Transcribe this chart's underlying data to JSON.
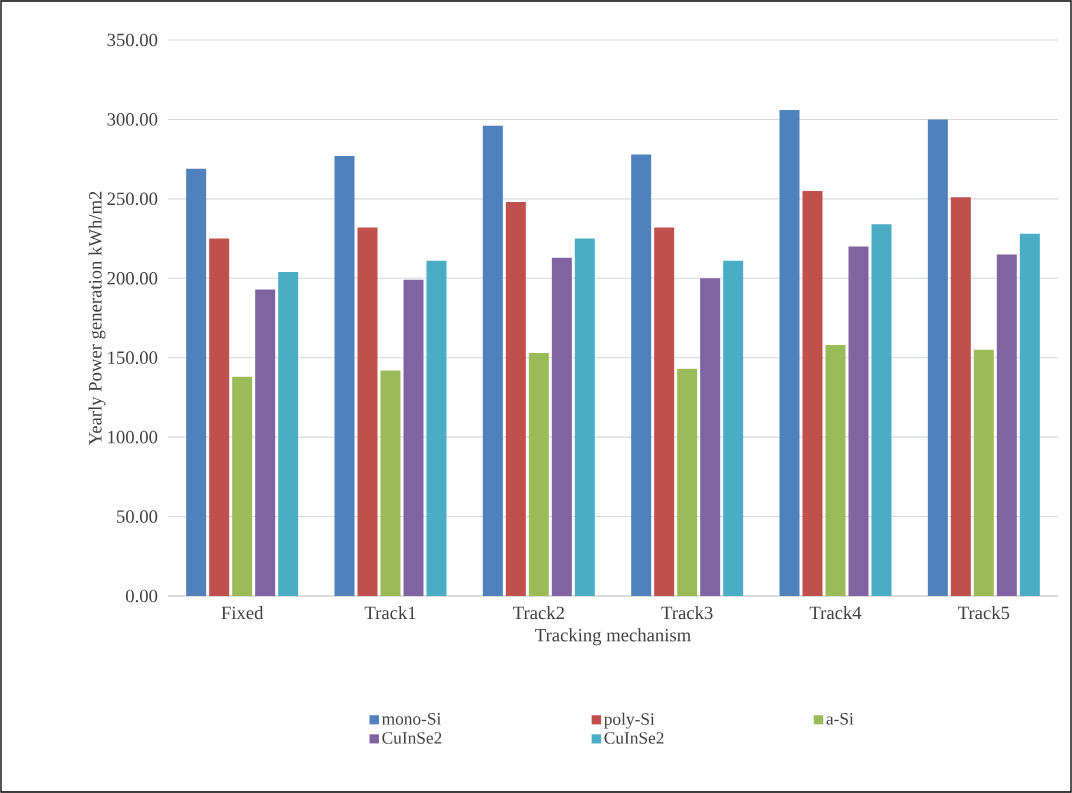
{
  "chart_data": {
    "type": "bar",
    "xlabel": "Tracking mechanism",
    "ylabel": "Yearly Power generation kWh/m2",
    "categories": [
      "Fixed",
      "Track1",
      "Track2",
      "Track3",
      "Track4",
      "Track5"
    ],
    "series": [
      {
        "name": "mono-Si",
        "color": "#4f81bd",
        "values": [
          269,
          277,
          296,
          278,
          306,
          300
        ]
      },
      {
        "name": "poly-Si",
        "color": "#c0504d",
        "values": [
          225,
          232,
          248,
          232,
          255,
          251
        ]
      },
      {
        "name": "a-Si",
        "color": "#9bbb59",
        "values": [
          138,
          142,
          153,
          143,
          158,
          155
        ]
      },
      {
        "name": "CuInSe2",
        "color": "#8064a2",
        "values": [
          193,
          199,
          213,
          200,
          220,
          215
        ]
      },
      {
        "name": "CuInSe2",
        "color": "#4bacc6",
        "values": [
          204,
          211,
          225,
          211,
          234,
          228
        ]
      }
    ],
    "ylim": [
      0,
      350
    ],
    "yticks": [
      {
        "value": 0,
        "label": "0.00"
      },
      {
        "value": 50,
        "label": "50.00"
      },
      {
        "value": 100,
        "label": "100.00"
      },
      {
        "value": 150,
        "label": "150.00"
      },
      {
        "value": 200,
        "label": "200.00"
      },
      {
        "value": 250,
        "label": "250.00"
      },
      {
        "value": 300,
        "label": "300.00"
      },
      {
        "value": 350,
        "label": "350.00"
      }
    ],
    "grid": "y",
    "legend": "bottom"
  }
}
